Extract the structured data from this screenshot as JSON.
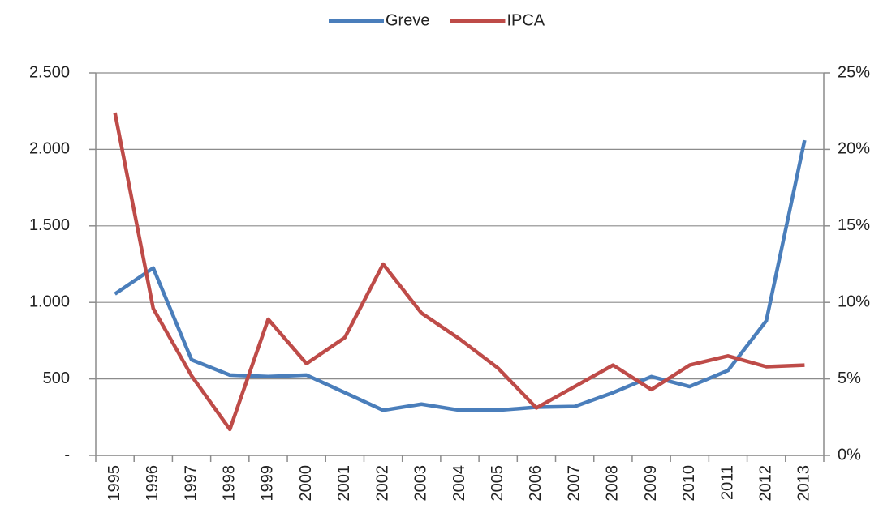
{
  "chart_data": {
    "type": "line",
    "categories": [
      "1995",
      "1996",
      "1997",
      "1998",
      "1999",
      "2000",
      "2001",
      "2002",
      "2003",
      "2004",
      "2005",
      "2006",
      "2007",
      "2008",
      "2009",
      "2010",
      "2011",
      "2012",
      "2013"
    ],
    "series": [
      {
        "name": "Greve",
        "color": "#4a7ebb",
        "values": [
          1055,
          1225,
          625,
          525,
          515,
          525,
          410,
          295,
          335,
          295,
          295,
          315,
          320,
          410,
          515,
          450,
          555,
          880,
          2060
        ]
      },
      {
        "name": "IPCA",
        "color": "#be4b48",
        "axis": "y2",
        "values": [
          22.4,
          9.6,
          5.2,
          1.7,
          8.9,
          6.0,
          7.7,
          12.5,
          9.3,
          7.6,
          5.7,
          3.1,
          4.5,
          5.9,
          4.3,
          5.9,
          6.5,
          5.8,
          5.9
        ]
      }
    ],
    "ylim": [
      0,
      2500
    ],
    "yticks": [
      {
        "value": 0,
        "label": "-"
      },
      500,
      {
        "value": 1000,
        "label": "1.000"
      },
      {
        "value": 1500,
        "label": "1.500"
      },
      {
        "value": 2000,
        "label": "2.000"
      },
      {
        "value": 2500,
        "label": "2.500"
      }
    ],
    "y2lim": [
      0,
      25
    ],
    "y2ticks": [
      {
        "value": 0,
        "label": "0%"
      },
      {
        "value": 5,
        "label": "5%"
      },
      {
        "value": 10,
        "label": "10%"
      },
      {
        "value": 15,
        "label": "15%"
      },
      {
        "value": 20,
        "label": "20%"
      },
      {
        "value": 25,
        "label": "25%"
      }
    ],
    "grid": true,
    "legend": "top"
  }
}
